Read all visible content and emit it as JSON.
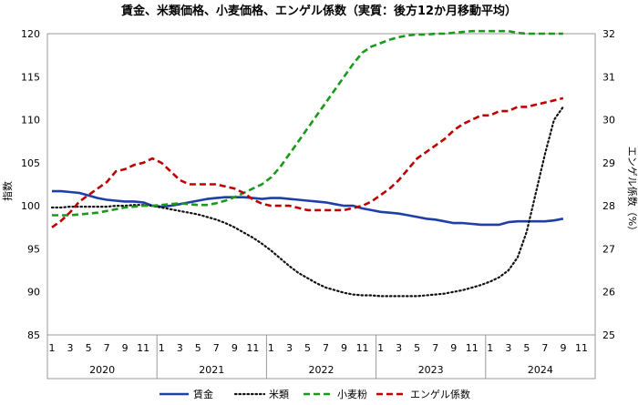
{
  "chart_data": {
    "type": "line",
    "title": "賃金、米類価格、小麦価格、エンゲル係数（実質：後方12か月移動平均）",
    "ylabel_left": "指数",
    "ylabel_right": "エンゲル係数（%）",
    "ylim_left": [
      85,
      120
    ],
    "ylim_right": [
      25,
      32
    ],
    "yticks_left": [
      "85",
      "90",
      "95",
      "100",
      "105",
      "110",
      "115",
      "120"
    ],
    "yticks_right": [
      "25",
      "26",
      "27",
      "28",
      "29",
      "30",
      "31",
      "32"
    ],
    "x_month_labels": [
      "1",
      "3",
      "5",
      "7",
      "9",
      "11"
    ],
    "years": [
      "2020",
      "2021",
      "2022",
      "2023",
      "2024"
    ],
    "months_per_year": 12,
    "grid": false,
    "legend_position": "bottom",
    "series": [
      {
        "name": "賃金",
        "axis": "left",
        "color": "#1f3fa8",
        "style": "solid",
        "values": [
          101.7,
          101.7,
          101.6,
          101.5,
          101.2,
          100.9,
          100.7,
          100.6,
          100.5,
          100.5,
          100.4,
          100.0,
          99.9,
          100.0,
          100.2,
          100.4,
          100.6,
          100.8,
          100.9,
          101.0,
          101.0,
          101.0,
          100.9,
          100.8,
          100.9,
          100.9,
          100.8,
          100.7,
          100.6,
          100.5,
          100.4,
          100.2,
          100.0,
          100.0,
          99.7,
          99.5,
          99.3,
          99.2,
          99.1,
          98.9,
          98.7,
          98.5,
          98.4,
          98.2,
          98.0,
          98.0,
          97.9,
          97.8,
          97.8,
          97.8,
          98.1,
          98.2,
          98.2,
          98.2,
          98.2,
          98.3,
          98.5
        ]
      },
      {
        "name": "米類",
        "axis": "left",
        "color": "#111111",
        "style": "dotted",
        "values": [
          99.8,
          99.8,
          99.9,
          99.9,
          99.9,
          99.9,
          99.9,
          100.0,
          100.0,
          100.1,
          100.1,
          100.0,
          99.8,
          99.6,
          99.4,
          99.2,
          99.0,
          98.7,
          98.4,
          98.0,
          97.5,
          96.9,
          96.3,
          95.6,
          94.8,
          93.9,
          93.0,
          92.2,
          91.6,
          91.0,
          90.5,
          90.2,
          89.9,
          89.7,
          89.6,
          89.6,
          89.5,
          89.5,
          89.5,
          89.5,
          89.5,
          89.6,
          89.7,
          89.8,
          90.0,
          90.2,
          90.5,
          90.8,
          91.2,
          91.7,
          92.5,
          94.0,
          97.0,
          101.5,
          106.0,
          110.0,
          111.5
        ]
      },
      {
        "name": "小麦粉",
        "axis": "left",
        "color": "#1a9a1a",
        "style": "dashed",
        "values": [
          98.9,
          98.9,
          98.9,
          99.0,
          99.1,
          99.2,
          99.4,
          99.6,
          99.8,
          99.9,
          100.0,
          100.0,
          100.1,
          100.2,
          100.3,
          100.2,
          100.1,
          100.1,
          100.3,
          100.6,
          101.0,
          101.5,
          102.0,
          102.5,
          103.3,
          104.5,
          106.0,
          107.5,
          109.0,
          110.5,
          112.0,
          113.5,
          115.0,
          116.5,
          117.8,
          118.5,
          118.9,
          119.3,
          119.6,
          119.8,
          119.9,
          119.9,
          120.0,
          120.0,
          120.1,
          120.2,
          120.3,
          120.3,
          120.3,
          120.3,
          120.3,
          120.1,
          120.0,
          120.0,
          120.0,
          120.0,
          120.0
        ]
      },
      {
        "name": "エンゲル係数",
        "axis": "right",
        "color": "#c00000",
        "style": "dashed",
        "values": [
          27.5,
          27.65,
          27.85,
          28.1,
          28.25,
          28.4,
          28.55,
          28.8,
          28.85,
          28.95,
          29.0,
          29.1,
          29.0,
          28.8,
          28.6,
          28.5,
          28.5,
          28.5,
          28.5,
          28.45,
          28.4,
          28.3,
          28.15,
          28.05,
          28.0,
          28.0,
          28.0,
          27.95,
          27.9,
          27.9,
          27.9,
          27.9,
          27.9,
          27.95,
          28.0,
          28.1,
          28.25,
          28.4,
          28.6,
          28.85,
          29.1,
          29.25,
          29.4,
          29.55,
          29.75,
          29.9,
          30.0,
          30.1,
          30.1,
          30.2,
          30.2,
          30.3,
          30.3,
          30.35,
          30.4,
          30.45,
          30.5
        ]
      }
    ]
  }
}
